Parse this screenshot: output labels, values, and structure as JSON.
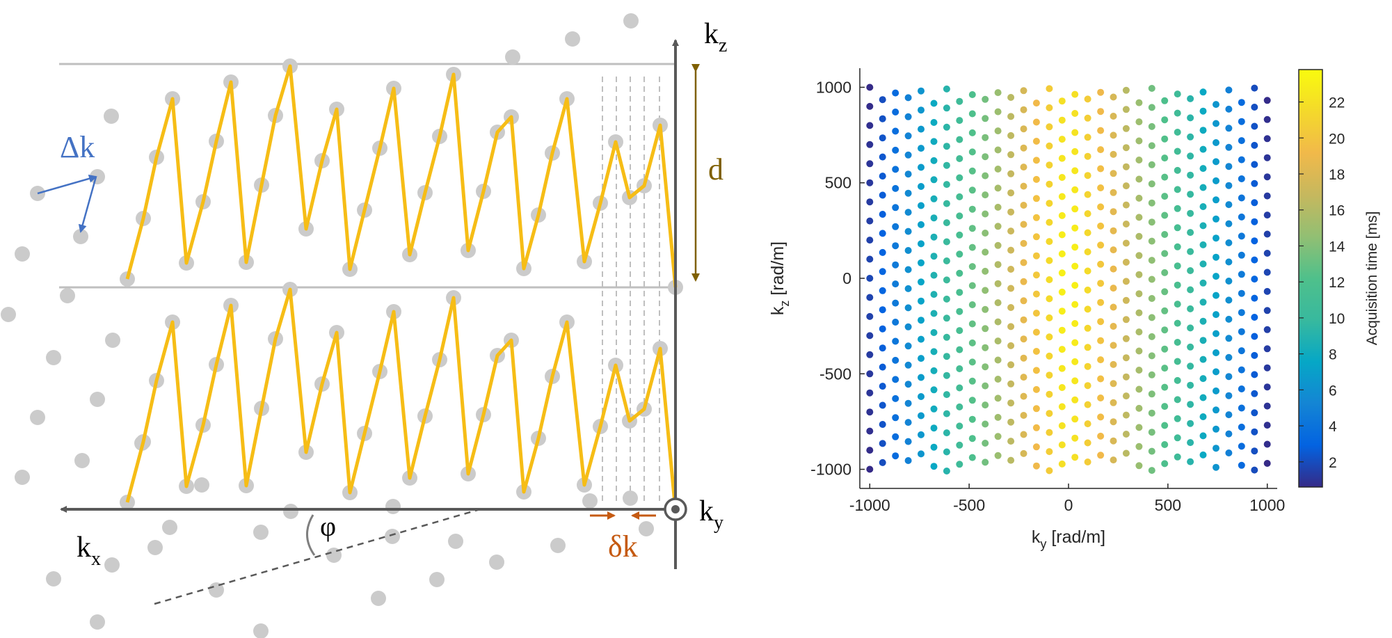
{
  "diagram": {
    "axis_kz": "k",
    "axis_kz_sub": "z",
    "axis_kx": "k",
    "axis_kx_sub": "x",
    "axis_ky": "k",
    "axis_ky_sub": "y",
    "label_delta_k_big": "Δk",
    "label_d": "d",
    "label_phi": "φ",
    "label_delta_k_small": "δk",
    "colors": {
      "trajectory": "#f6bd16",
      "samples": "#cbcbcb",
      "axes": "#595959",
      "delta_k_big": "#4472c4",
      "d": "#7f6000",
      "delta_k_small": "#c55a11",
      "guides": "#bfbfbf"
    }
  },
  "chart_data": {
    "type": "scatter",
    "xlabel": "k",
    "xlabel_sub": "y",
    "xlabel_unit": " [rad/m]",
    "ylabel": "k",
    "ylabel_sub": "z",
    "ylabel_unit": " [rad/m]",
    "xlim": [
      -1050,
      1050
    ],
    "ylim": [
      -1100,
      1100
    ],
    "xticks": [
      -1000,
      -500,
      0,
      500,
      1000
    ],
    "yticks": [
      -1000,
      -500,
      0,
      500,
      1000
    ],
    "grid": false,
    "colorbar": {
      "label": "Acquisition time [ms]",
      "ticks": [
        2,
        4,
        6,
        8,
        10,
        12,
        14,
        16,
        18,
        20,
        22
      ],
      "range": [
        0.6,
        23.8
      ],
      "colormap": "parula"
    },
    "columns_ky": [
      -1000,
      -936,
      -872,
      -808,
      -744,
      -680,
      -616,
      -552,
      -488,
      -424,
      -360,
      -296,
      -232,
      -168,
      -104,
      -40,
      0,
      40,
      104,
      168,
      232,
      296,
      360,
      424,
      488,
      552,
      616,
      680,
      744,
      808,
      872,
      936,
      1000
    ],
    "kz_spacing": 100,
    "note_time_model": "acquisition time is largest near ky = 0 and falls off toward |ky| = 1000"
  }
}
